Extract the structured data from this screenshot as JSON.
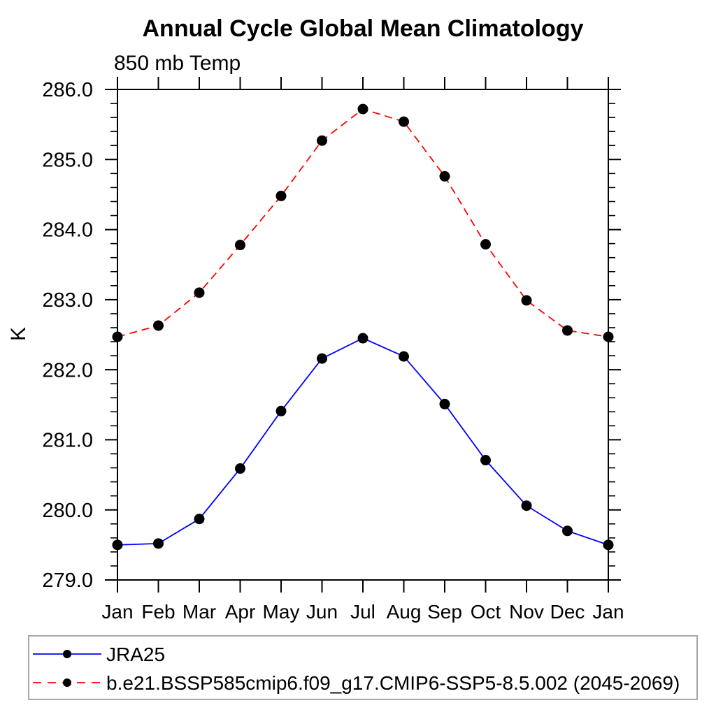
{
  "title": "Annual Cycle Global Mean Climatology",
  "subtitle": "850 mb Temp",
  "ylabel": "K",
  "chart_data": {
    "type": "line",
    "categories": [
      "Jan",
      "Feb",
      "Mar",
      "Apr",
      "May",
      "Jun",
      "Jul",
      "Aug",
      "Sep",
      "Oct",
      "Nov",
      "Dec",
      "Jan"
    ],
    "title": "Annual Cycle Global Mean Climatology",
    "subtitle": "850 mb Temp",
    "xlabel": "",
    "ylabel": "K",
    "ylim": [
      279.0,
      286.0
    ],
    "ytick_major_interval": 1.0,
    "ytick_minor_interval": 0.2,
    "ytick_labels": [
      "279.0",
      "280.0",
      "281.0",
      "282.0",
      "283.0",
      "284.0",
      "285.0",
      "286.0"
    ],
    "grid": false,
    "legend_position": "bottom-left",
    "marker": "filled-circle",
    "marker_color": "#000000",
    "axis_color": "#000000",
    "legend_border_color": "#a8a8a8",
    "series": [
      {
        "name": "JRA25",
        "color": "#0000ff",
        "line_style": "solid",
        "values": [
          279.5,
          279.52,
          279.87,
          280.59,
          281.41,
          282.16,
          282.45,
          282.19,
          281.51,
          280.71,
          280.06,
          279.7,
          279.5
        ]
      },
      {
        "name": "b.e21.BSSP585cmip6.f09_g17.CMIP6-SSP5-8.5.002 (2045-2069)",
        "color": "#ff0000",
        "line_style": "dashed",
        "values": [
          282.47,
          282.63,
          283.1,
          283.78,
          284.48,
          285.27,
          285.72,
          285.54,
          284.76,
          283.79,
          282.99,
          282.56,
          282.47
        ]
      }
    ]
  }
}
